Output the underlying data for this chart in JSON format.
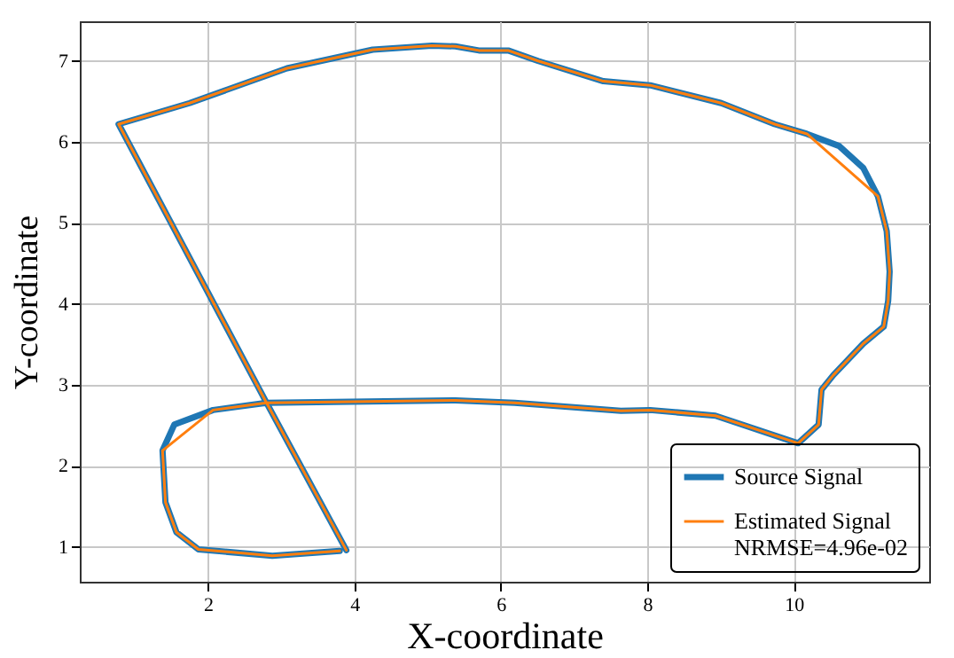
{
  "chart_data": {
    "type": "line",
    "xlabel": "X-coordinate",
    "ylabel": "Y-coordinate",
    "xlim": [
      0.25,
      11.85
    ],
    "ylim": [
      0.57,
      7.49
    ],
    "xticks": [
      2,
      4,
      6,
      8,
      10
    ],
    "yticks": [
      1,
      2,
      3,
      4,
      5,
      6,
      7
    ],
    "grid": true,
    "legend": "bottom right",
    "series": [
      {
        "name": "Source Signal",
        "color": "#1f77b4",
        "x": [
          3.89,
          2.8,
          0.78,
          1.75,
          3.08,
          4.25,
          5.06,
          5.38,
          5.7,
          6.1,
          6.51,
          7.4,
          8.04,
          9.01,
          9.74,
          10.18,
          10.62,
          10.95,
          11.15,
          11.27,
          11.31,
          11.29,
          11.23,
          10.95,
          10.54,
          10.38,
          10.34,
          10.06,
          8.93,
          8.04,
          7.64,
          6.19,
          5.38,
          2.8,
          2.07,
          1.54,
          1.38,
          1.42,
          1.57,
          1.87,
          2.88,
          3.8
        ],
        "values": [
          0.96,
          2.78,
          6.22,
          6.48,
          6.91,
          7.14,
          7.19,
          7.18,
          7.13,
          7.13,
          7.0,
          6.75,
          6.7,
          6.48,
          6.22,
          6.1,
          5.95,
          5.68,
          5.33,
          4.9,
          4.4,
          4.04,
          3.72,
          3.51,
          3.12,
          2.94,
          2.51,
          2.28,
          2.62,
          2.69,
          2.68,
          2.78,
          2.81,
          2.78,
          2.69,
          2.51,
          2.19,
          1.55,
          1.18,
          0.97,
          0.89,
          0.95
        ]
      },
      {
        "name": "Estimated Signal\n NRMSE=4.96e-02",
        "color": "#ff7f0e",
        "x": [
          3.89,
          2.8,
          0.78,
          1.75,
          3.08,
          4.25,
          5.06,
          5.38,
          5.7,
          6.1,
          6.51,
          7.4,
          8.04,
          9.01,
          9.74,
          10.18,
          11.15,
          11.27,
          11.31,
          11.29,
          11.23,
          10.95,
          10.54,
          10.38,
          10.34,
          10.06,
          8.93,
          8.04,
          7.64,
          6.19,
          5.38,
          2.8,
          2.07,
          1.38,
          1.42,
          1.57,
          1.87,
          2.88,
          3.8
        ],
        "values": [
          0.96,
          2.78,
          6.22,
          6.48,
          6.91,
          7.14,
          7.19,
          7.18,
          7.13,
          7.13,
          7.0,
          6.75,
          6.7,
          6.48,
          6.22,
          6.1,
          5.33,
          4.9,
          4.4,
          4.04,
          3.72,
          3.51,
          3.12,
          2.94,
          2.51,
          2.28,
          2.62,
          2.69,
          2.68,
          2.78,
          2.81,
          2.78,
          2.69,
          2.19,
          1.55,
          1.18,
          0.97,
          0.89,
          0.95
        ]
      }
    ]
  }
}
